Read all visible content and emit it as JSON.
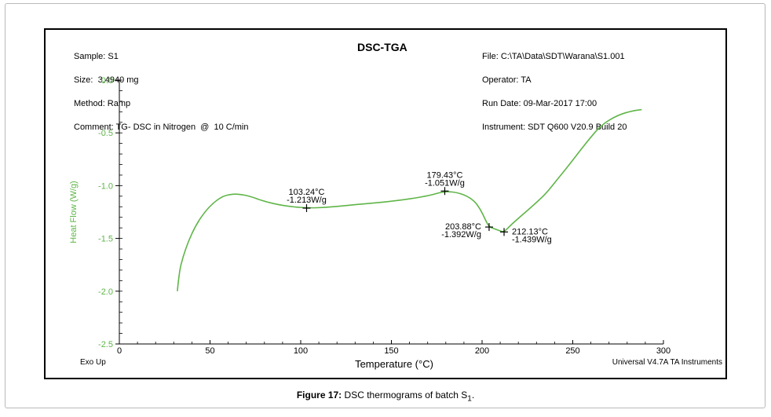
{
  "header": {
    "left_lines": [
      "Sample: S1",
      "Size:  3.4940 mg",
      "Method: Ramp",
      "Comment: TG- DSC in Nitrogen  @  10 C/min"
    ],
    "title": "DSC-TGA",
    "right_lines": [
      "File: C:\\TA\\Data\\SDT\\Warana\\S1.001",
      "Operator: TA",
      "Run Date: 09-Mar-2017 17:00",
      "Instrument: SDT Q600 V20.9 Build 20"
    ]
  },
  "footer": {
    "left_note": "Exo Up",
    "right_note": "Universal V4.7A TA Instruments"
  },
  "caption": {
    "label": "Figure 17:",
    "text": "DSC thermograms of batch S",
    "subscript": "1",
    "suffix": "."
  },
  "chart_data": {
    "type": "line",
    "title": "DSC-TGA",
    "xlabel": "Temperature (°C)",
    "ylabel": "Heat Flow (W/g)",
    "xlim": [
      0,
      300
    ],
    "ylim": [
      -2.5,
      0.0
    ],
    "x_ticks": [
      0,
      50,
      100,
      150,
      200,
      250,
      300
    ],
    "y_ticks": [
      0.0,
      -0.5,
      -1.0,
      -1.5,
      -2.0,
      -2.5
    ],
    "x_tick_labels": [
      "0",
      "50",
      "100",
      "150",
      "200",
      "250",
      "300"
    ],
    "y_tick_labels": [
      "0.0",
      "-0.5",
      "-1.0",
      "-1.5",
      "-2.0",
      "-2.5"
    ],
    "line_color": "#5fb548",
    "ylabel_color": "#5fb548",
    "series": [
      {
        "x": [
          32,
          33,
          35,
          38,
          42,
          47,
          52,
          57,
          62,
          66,
          72,
          80,
          90,
          103.24,
          115,
          130,
          150,
          170,
          179.43,
          188,
          195,
          199,
          202,
          203.88,
          207,
          210,
          212.13,
          216,
          222,
          228,
          235,
          242,
          250,
          258,
          266,
          275,
          283,
          288
        ],
        "y": [
          -2.0,
          -1.82,
          -1.68,
          -1.53,
          -1.38,
          -1.25,
          -1.16,
          -1.1,
          -1.08,
          -1.08,
          -1.1,
          -1.15,
          -1.19,
          -1.213,
          -1.205,
          -1.18,
          -1.15,
          -1.1,
          -1.051,
          -1.07,
          -1.13,
          -1.22,
          -1.33,
          -1.392,
          -1.41,
          -1.43,
          -1.439,
          -1.37,
          -1.28,
          -1.19,
          -1.08,
          -0.93,
          -0.76,
          -0.58,
          -0.42,
          -0.33,
          -0.29,
          -0.28
        ]
      }
    ],
    "annotations": [
      {
        "x": 103.24,
        "y": -1.213,
        "text1": "103.24°C",
        "text2": "-1.213W/g",
        "pos": "above"
      },
      {
        "x": 179.43,
        "y": -1.051,
        "text1": "179.43°C",
        "text2": "-1.051W/g",
        "pos": "above"
      },
      {
        "x": 203.88,
        "y": -1.392,
        "text1": "203.88°C",
        "text2": "-1.392W/g",
        "pos": "left"
      },
      {
        "x": 212.13,
        "y": -1.439,
        "text1": "212.13°C",
        "text2": "-1.439W/g",
        "pos": "right"
      }
    ],
    "grid": false
  }
}
